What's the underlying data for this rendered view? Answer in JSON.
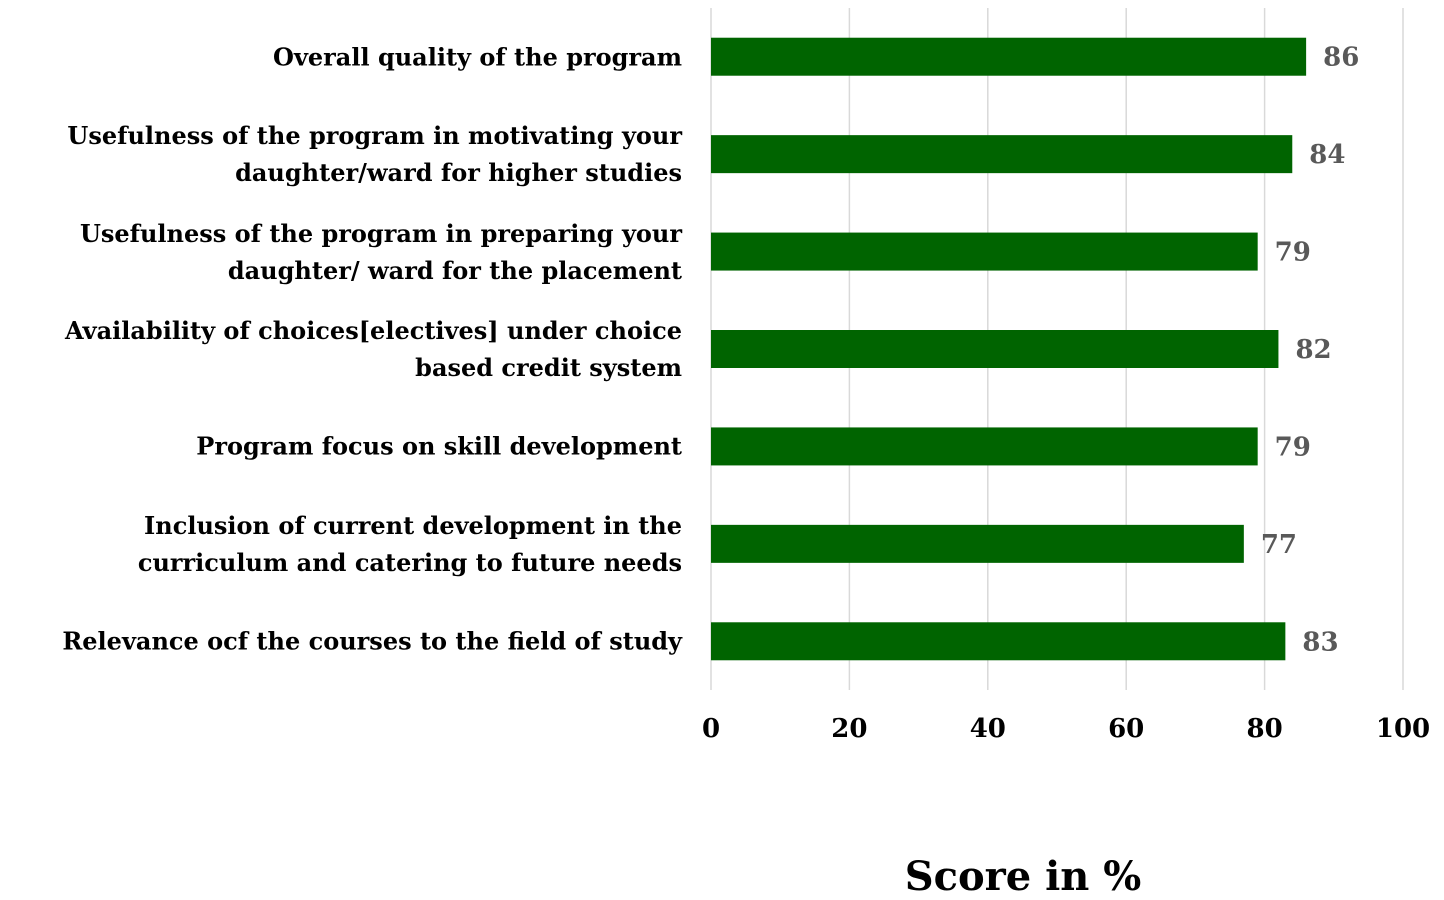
{
  "chart_data": {
    "type": "bar",
    "orientation": "horizontal",
    "categories": [
      "Overall quality of the program",
      "Usefulness of the program in motivating your daughter/ward for higher studies",
      "Usefulness of the program in preparing your daughter/ ward for the placement",
      "Availability of choices[electives] under choice based credit system",
      "Program focus on skill development",
      "Inclusion of current development in the curriculum and catering to future needs",
      "Relevance ocf the courses to the field of study"
    ],
    "values": [
      86,
      84,
      79,
      82,
      79,
      77,
      83
    ],
    "color": "#006400",
    "xlabel": "Score in %",
    "xlim": [
      0,
      100
    ],
    "xticks": [
      0,
      20,
      40,
      60,
      80,
      100
    ],
    "grid": true
  }
}
